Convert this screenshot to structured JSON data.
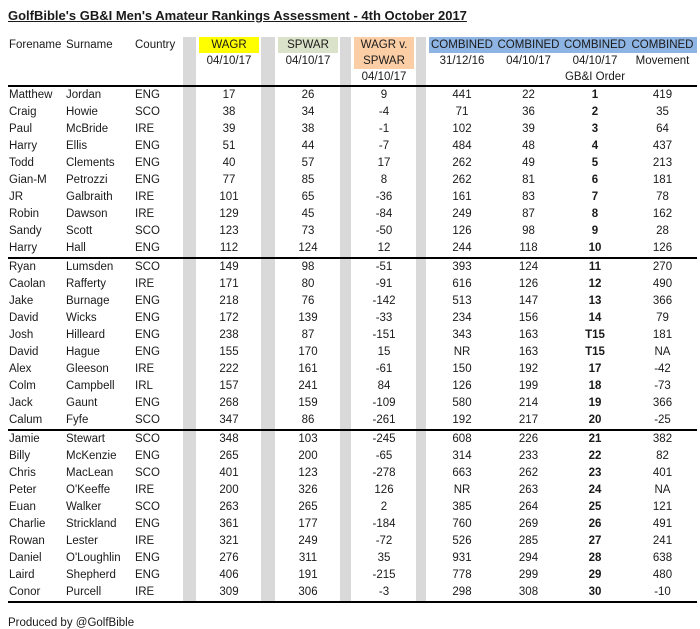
{
  "title": "GolfBible's GB&I Men's Amateur Rankings Assessment - 4th October 2017",
  "footer": "Produced by @GolfBible",
  "colors": {
    "wagr_highlight": "#FFFF00",
    "spwar_highlight": "#DAE3C9",
    "wagr_v_spwar_highlight": "#FBCEA6",
    "combined_highlight": "#8DB4E2",
    "separator_gray": "#D9D9D9"
  },
  "header": {
    "forename": "Forename",
    "surname": "Surname",
    "country": "Country",
    "wagr": {
      "label": "WAGR",
      "date": "04/10/17"
    },
    "spwar": {
      "label": "SPWAR",
      "date": "04/10/17"
    },
    "wagr_v_spwar": {
      "line1": "WAGR v.",
      "line2": "SPWAR",
      "date": "04/10/17"
    },
    "combined": {
      "label": "COMBINED",
      "sub": [
        "31/12/16",
        "04/10/17",
        "04/10/17",
        "Movement"
      ],
      "order_note": "GB&I Order"
    }
  },
  "chart_data": {
    "type": "table",
    "title": "GolfBible's GB&I Men's Amateur Rankings Assessment - 4th October 2017",
    "columns": [
      "Forename",
      "Surname",
      "Country",
      "WAGR 04/10/17",
      "SPWAR 04/10/17",
      "WAGR v. SPWAR 04/10/17",
      "COMBINED 31/12/16",
      "COMBINED 04/10/17",
      "COMBINED 04/10/17 GB&I Order",
      "COMBINED Movement"
    ],
    "rows": [
      [
        "Matthew",
        "Jordan",
        "ENG",
        "17",
        "26",
        "9",
        "441",
        "22",
        "1",
        "419"
      ],
      [
        "Craig",
        "Howie",
        "SCO",
        "38",
        "34",
        "-4",
        "71",
        "36",
        "2",
        "35"
      ],
      [
        "Paul",
        "McBride",
        "IRE",
        "39",
        "38",
        "-1",
        "102",
        "39",
        "3",
        "64"
      ],
      [
        "Harry",
        "Ellis",
        "ENG",
        "51",
        "44",
        "-7",
        "484",
        "48",
        "4",
        "437"
      ],
      [
        "Todd",
        "Clements",
        "ENG",
        "40",
        "57",
        "17",
        "262",
        "49",
        "5",
        "213"
      ],
      [
        "Gian-M",
        "Petrozzi",
        "ENG",
        "77",
        "85",
        "8",
        "262",
        "81",
        "6",
        "181"
      ],
      [
        "JR",
        "Galbraith",
        "IRE",
        "101",
        "65",
        "-36",
        "161",
        "83",
        "7",
        "78"
      ],
      [
        "Robin",
        "Dawson",
        "IRE",
        "129",
        "45",
        "-84",
        "249",
        "87",
        "8",
        "162"
      ],
      [
        "Sandy",
        "Scott",
        "SCO",
        "123",
        "73",
        "-50",
        "126",
        "98",
        "9",
        "28"
      ],
      [
        "Harry",
        "Hall",
        "ENG",
        "112",
        "124",
        "12",
        "244",
        "118",
        "10",
        "126"
      ],
      [
        "Ryan",
        "Lumsden",
        "SCO",
        "149",
        "98",
        "-51",
        "393",
        "124",
        "11",
        "270"
      ],
      [
        "Caolan",
        "Rafferty",
        "IRE",
        "171",
        "80",
        "-91",
        "616",
        "126",
        "12",
        "490"
      ],
      [
        "Jake",
        "Burnage",
        "ENG",
        "218",
        "76",
        "-142",
        "513",
        "147",
        "13",
        "366"
      ],
      [
        "David",
        "Wicks",
        "ENG",
        "172",
        "139",
        "-33",
        "234",
        "156",
        "14",
        "79"
      ],
      [
        "Josh",
        "Hilleard",
        "ENG",
        "238",
        "87",
        "-151",
        "343",
        "163",
        "T15",
        "181"
      ],
      [
        "David",
        "Hague",
        "ENG",
        "155",
        "170",
        "15",
        "NR",
        "163",
        "T15",
        "NA"
      ],
      [
        "Alex",
        "Gleeson",
        "IRE",
        "222",
        "161",
        "-61",
        "150",
        "192",
        "17",
        "-42"
      ],
      [
        "Colm",
        "Campbell",
        "IRL",
        "157",
        "241",
        "84",
        "126",
        "199",
        "18",
        "-73"
      ],
      [
        "Jack",
        "Gaunt",
        "ENG",
        "268",
        "159",
        "-109",
        "580",
        "214",
        "19",
        "366"
      ],
      [
        "Calum",
        "Fyfe",
        "SCO",
        "347",
        "86",
        "-261",
        "192",
        "217",
        "20",
        "-25"
      ],
      [
        "Jamie",
        "Stewart",
        "SCO",
        "348",
        "103",
        "-245",
        "608",
        "226",
        "21",
        "382"
      ],
      [
        "Billy",
        "McKenzie",
        "ENG",
        "265",
        "200",
        "-65",
        "314",
        "233",
        "22",
        "82"
      ],
      [
        "Chris",
        "MacLean",
        "SCO",
        "401",
        "123",
        "-278",
        "663",
        "262",
        "23",
        "401"
      ],
      [
        "Peter",
        "O'Keeffe",
        "IRE",
        "200",
        "326",
        "126",
        "NR",
        "263",
        "24",
        "NA"
      ],
      [
        "Euan",
        "Walker",
        "SCO",
        "263",
        "265",
        "2",
        "385",
        "264",
        "25",
        "121"
      ],
      [
        "Charlie",
        "Strickland",
        "ENG",
        "361",
        "177",
        "-184",
        "760",
        "269",
        "26",
        "491"
      ],
      [
        "Rowan",
        "Lester",
        "IRE",
        "321",
        "249",
        "-72",
        "526",
        "285",
        "27",
        "241"
      ],
      [
        "Daniel",
        "O'Loughlin",
        "ENG",
        "276",
        "311",
        "35",
        "931",
        "294",
        "28",
        "638"
      ],
      [
        "Laird",
        "Shepherd",
        "ENG",
        "406",
        "191",
        "-215",
        "778",
        "299",
        "29",
        "480"
      ],
      [
        "Conor",
        "Purcell",
        "IRE",
        "309",
        "306",
        "-3",
        "298",
        "308",
        "30",
        "-10"
      ]
    ]
  }
}
